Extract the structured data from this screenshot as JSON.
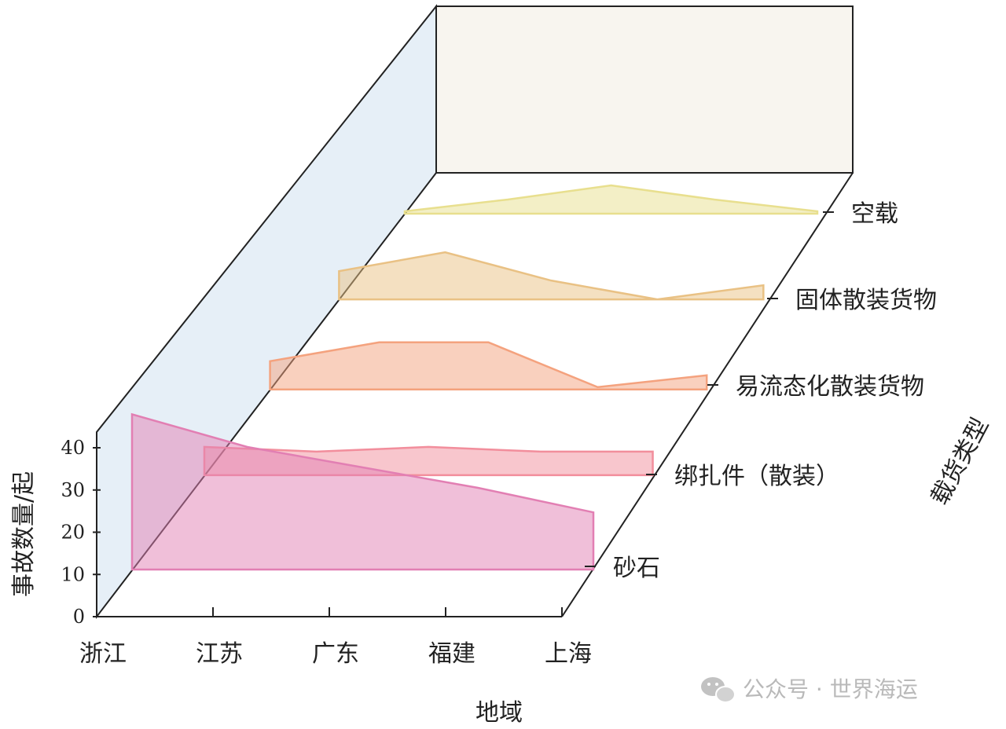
{
  "chart_data": {
    "type": "area",
    "projection": "3d-waterfall",
    "xlabel": "地域",
    "ylabel": "事故数量/起",
    "zlabel": "载货类型",
    "categories": [
      "浙江",
      "江苏",
      "广东",
      "福建",
      "上海"
    ],
    "ylim": [
      0,
      40
    ],
    "yticks": [
      0,
      10,
      20,
      30,
      40
    ],
    "series": [
      {
        "name": "砂石",
        "values": [
          38,
          30,
          25,
          20,
          14
        ],
        "color": "#e27fb3"
      },
      {
        "name": "绑扎件（散装）",
        "values": [
          6,
          5,
          6,
          5,
          5
        ],
        "color": "#f28e9c"
      },
      {
        "name": "易流态化散装货物",
        "values": [
          6,
          10,
          10,
          0.5,
          3
        ],
        "color": "#f4a27e"
      },
      {
        "name": "固体散装货物",
        "values": [
          6,
          10,
          4,
          0,
          3
        ],
        "color": "#e9c184"
      },
      {
        "name": "空载",
        "values": [
          0.5,
          3,
          6,
          3,
          0.5
        ],
        "color": "#e8df8e"
      }
    ]
  },
  "watermark": {
    "icon": "wechat-icon",
    "text": "公众号 · 世界海运"
  }
}
